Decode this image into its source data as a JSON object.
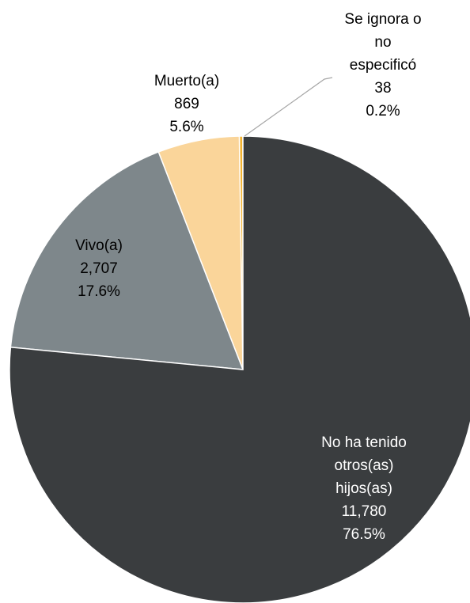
{
  "chart_data": {
    "type": "pie",
    "categories": [
      "No ha tenido otros(as) hijos(as)",
      "Vivo(a)",
      "Muerto(a)",
      "Se ignora o no especificó"
    ],
    "values": [
      11780,
      2707,
      869,
      38
    ],
    "value_labels": [
      "11,780",
      "2,707",
      "869",
      "38"
    ],
    "percentages": [
      76.5,
      17.6,
      5.6,
      0.2
    ],
    "percentage_labels": [
      "76.5%",
      "17.6%",
      "5.6%",
      "0.2%"
    ],
    "colors": [
      "#3a3d3f",
      "#7e878b",
      "#fad59a",
      "#f2b22e"
    ]
  }
}
